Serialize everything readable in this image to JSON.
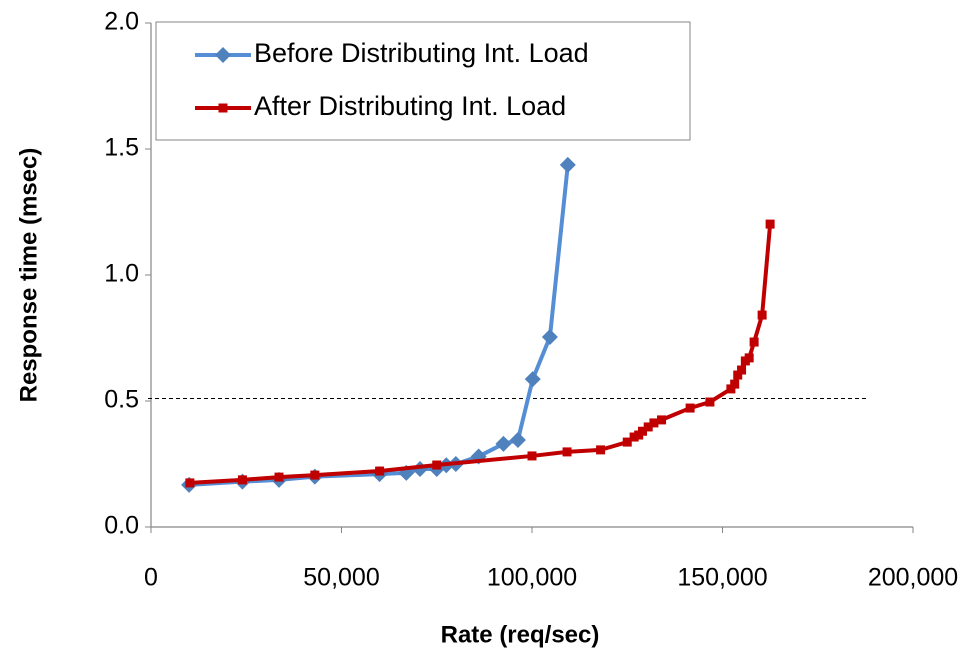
{
  "chart_data": {
    "type": "line",
    "x_label": "Rate (req/sec)",
    "y_label": "Response time (msec)",
    "xlim": [
      0,
      200000
    ],
    "xticks": [
      {
        "value": 0,
        "label": "0"
      },
      {
        "value": 50000,
        "label": "50,000"
      },
      {
        "value": 100000,
        "label": "100,000"
      },
      {
        "value": 150000,
        "label": "150,000"
      },
      {
        "value": 200000,
        "label": "200,000"
      }
    ],
    "ylim": [
      0,
      2
    ],
    "yticks": [
      {
        "value": 0,
        "label": "0.0"
      },
      {
        "value": 0.5,
        "label": "0.5"
      },
      {
        "value": 1,
        "label": "1.0"
      },
      {
        "value": 1.5,
        "label": "1.5"
      },
      {
        "value": 2,
        "label": "2.0"
      }
    ],
    "legend": "top-left",
    "threshold": {
      "y": 0.51,
      "x_end": 188000
    },
    "series": [
      {
        "name": "Before Distributing Int. Load",
        "color": "#558ed5",
        "marker_color": "#4f81bd",
        "marker": "diamond",
        "x": [
          10000,
          24000,
          33600,
          43000,
          60000,
          67000,
          70600,
          75000,
          77500,
          80000,
          86000,
          92500,
          96300,
          100200,
          104700,
          109400
        ],
        "values": [
          0.167,
          0.18,
          0.187,
          0.2,
          0.21,
          0.215,
          0.23,
          0.23,
          0.245,
          0.25,
          0.28,
          0.33,
          0.345,
          0.587,
          0.754,
          1.437
        ]
      },
      {
        "name": "After Distributing Int. Load",
        "color": "#c00000",
        "marker_color": "#c00000",
        "marker": "square",
        "x": [
          10200,
          24000,
          33600,
          43000,
          60000,
          75000,
          100000,
          109200,
          118000,
          125000,
          126800,
          128000,
          129000,
          130500,
          132000,
          134000,
          141500,
          146700,
          152200,
          153200,
          154000,
          155000,
          156000,
          157000,
          158300,
          160400,
          162500
        ],
        "values": [
          0.175,
          0.187,
          0.198,
          0.206,
          0.222,
          0.246,
          0.282,
          0.298,
          0.306,
          0.337,
          0.357,
          0.365,
          0.38,
          0.397,
          0.413,
          0.425,
          0.472,
          0.496,
          0.548,
          0.567,
          0.603,
          0.623,
          0.659,
          0.671,
          0.734,
          0.841,
          1.202
        ]
      }
    ]
  }
}
